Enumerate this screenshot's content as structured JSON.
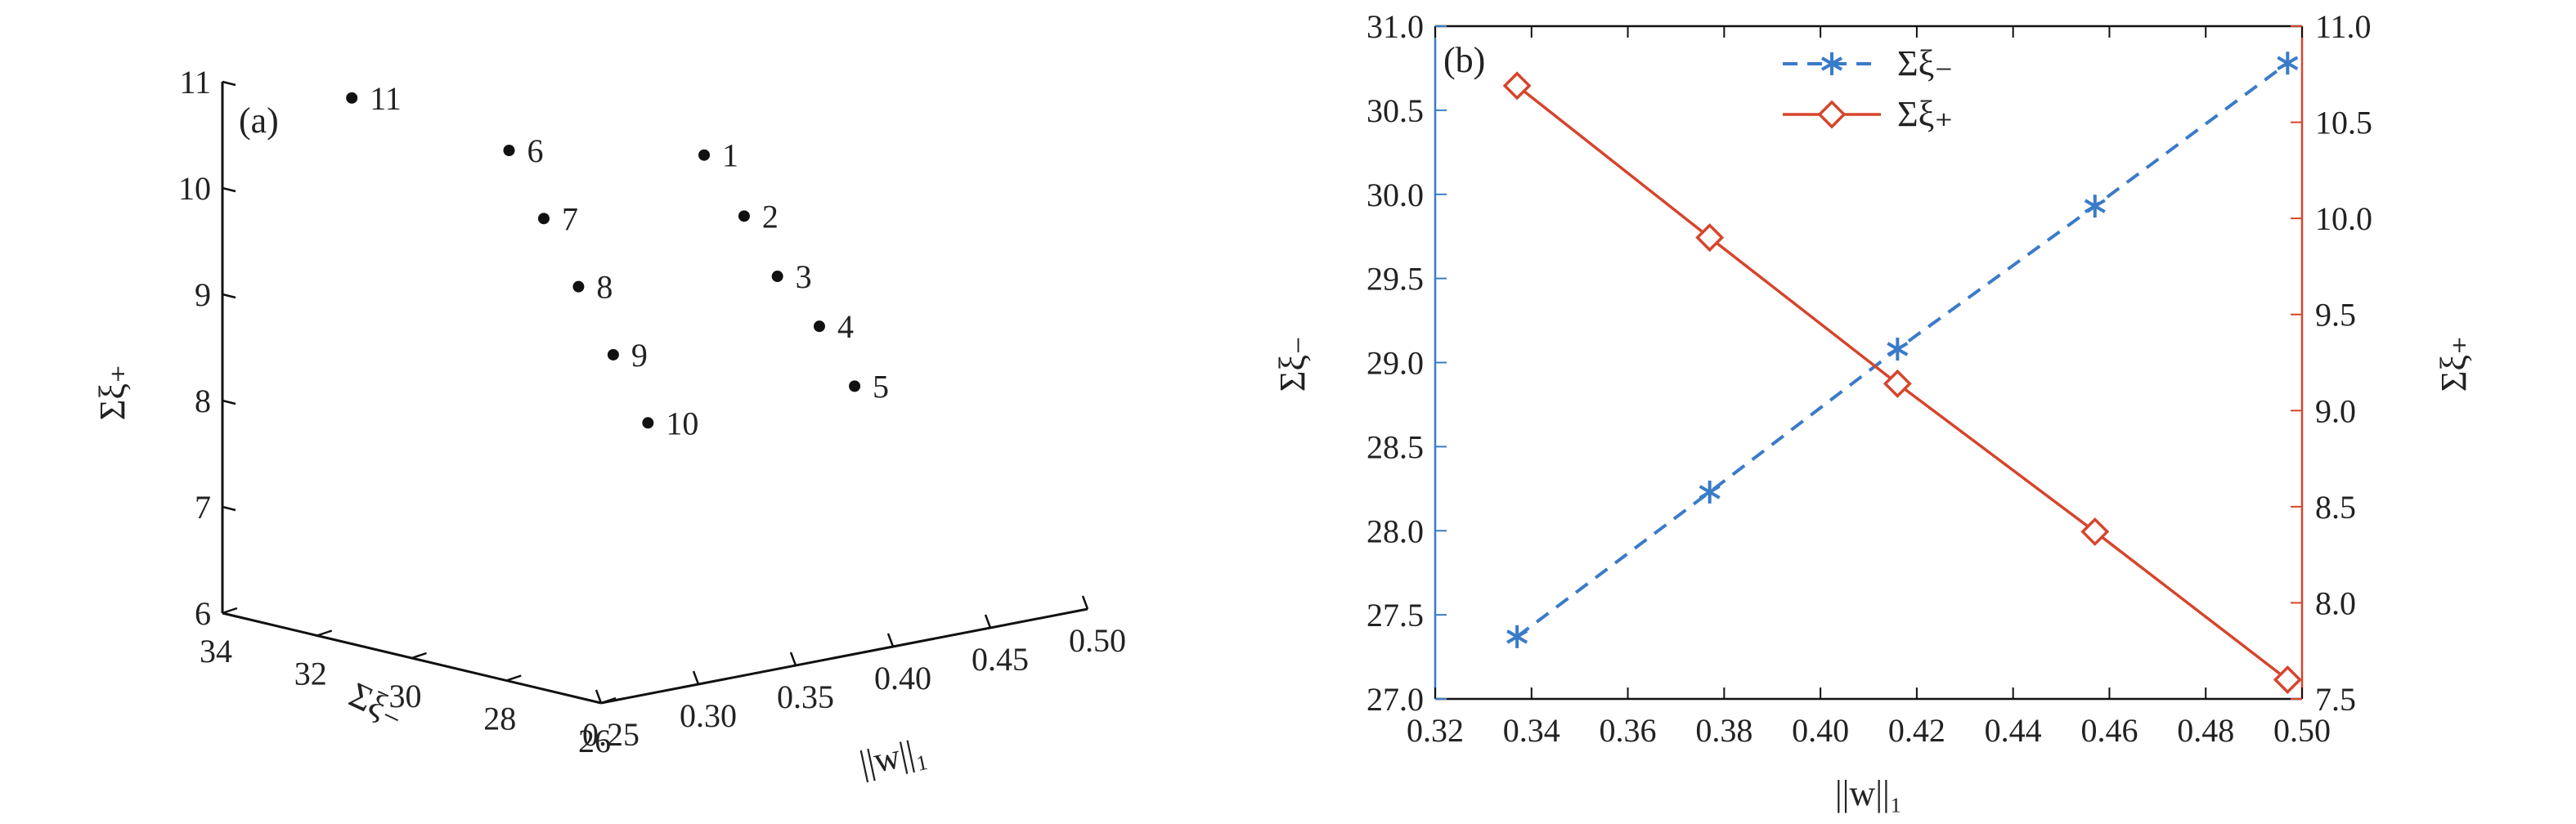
{
  "chart_data": [
    {
      "type": "scatter",
      "panel_label": "(a)",
      "xlabel": "||w||₁",
      "ylabel": "Σξ₋",
      "zlabel": "Σξ₊",
      "xlim": [
        0.25,
        0.5
      ],
      "ylim": [
        26,
        34
      ],
      "zlim": [
        6,
        11
      ],
      "x_ticks": [
        "0.25",
        "0.30",
        "0.35",
        "0.40",
        "0.45",
        "0.50"
      ],
      "y_ticks": [
        "26",
        "28",
        "30",
        "32",
        "34"
      ],
      "z_ticks": [
        "6",
        "7",
        "8",
        "9",
        "10",
        "11"
      ],
      "points": [
        {
          "label": "1",
          "x": 0.337,
          "y": 27.4,
          "z": 10.7
        },
        {
          "label": "2",
          "x": 0.377,
          "y": 28.2,
          "z": 9.9
        },
        {
          "label": "3",
          "x": 0.416,
          "y": 29.1,
          "z": 9.1
        },
        {
          "label": "4",
          "x": 0.457,
          "y": 29.9,
          "z": 8.4
        },
        {
          "label": "5",
          "x": 0.497,
          "y": 30.8,
          "z": 7.6
        },
        {
          "label": "6",
          "x": 0.3,
          "y": 30.0,
          "z": 10.6
        },
        {
          "label": "7",
          "x": 0.33,
          "y": 30.5,
          "z": 9.8
        },
        {
          "label": "8",
          "x": 0.36,
          "y": 31.0,
          "z": 9.0
        },
        {
          "label": "9",
          "x": 0.39,
          "y": 31.5,
          "z": 8.2
        },
        {
          "label": "10",
          "x": 0.42,
          "y": 32.0,
          "z": 7.4
        },
        {
          "label": "11",
          "x": 0.28,
          "y": 32.5,
          "z": 10.9
        }
      ]
    },
    {
      "type": "line",
      "panel_label": "(b)",
      "xlabel": "||w||₁",
      "ylabel": "Σξ₋",
      "ylabel_right": "Σξ₊",
      "xlim": [
        0.32,
        0.5
      ],
      "ylim": [
        27.0,
        31.0
      ],
      "ylim_right": [
        7.5,
        11.0
      ],
      "x_ticks": [
        "0.32",
        "0.34",
        "0.36",
        "0.38",
        "0.40",
        "0.42",
        "0.44",
        "0.46",
        "0.48",
        "0.50"
      ],
      "y_ticks": [
        "27.0",
        "27.5",
        "28.0",
        "28.5",
        "29.0",
        "29.5",
        "30.0",
        "30.5",
        "31.0"
      ],
      "y_ticks_right": [
        "7.5",
        "8.0",
        "8.5",
        "9.0",
        "9.5",
        "10.0",
        "10.5",
        "11.0"
      ],
      "legend_position": "top-center",
      "series": [
        {
          "name": "Σξ₋",
          "axis": "left",
          "color": "#3a7bc8",
          "line": "dashed",
          "marker": "asterisk",
          "x": [
            0.337,
            0.377,
            0.416,
            0.457,
            0.497
          ],
          "y": [
            27.37,
            28.23,
            29.08,
            29.93,
            30.78
          ]
        },
        {
          "name": "Σξ₊",
          "axis": "right",
          "color": "#d6452c",
          "line": "solid",
          "marker": "diamond",
          "x": [
            0.337,
            0.377,
            0.416,
            0.457,
            0.497
          ],
          "y": [
            10.69,
            9.9,
            9.14,
            8.37,
            7.6
          ]
        }
      ]
    }
  ]
}
